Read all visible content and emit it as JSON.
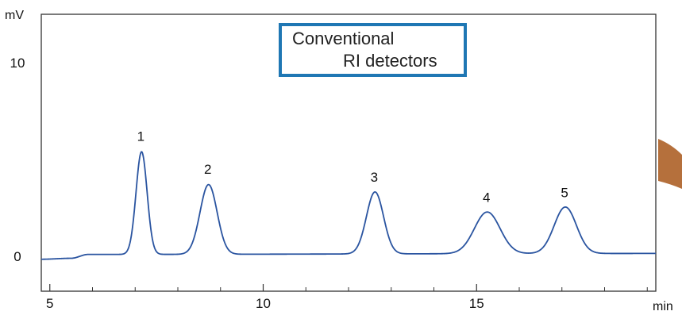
{
  "chart_data": {
    "type": "line",
    "title": "",
    "ylabel": "mV",
    "xlabel": "min",
    "xlim": [
      4.8,
      19.2
    ],
    "ylim": [
      -1.8,
      12.5
    ],
    "x_ticks": [
      5,
      10,
      15
    ],
    "x_minor_ticks": [
      6,
      7,
      8,
      9,
      11,
      12,
      13,
      14,
      16,
      17,
      18,
      19
    ],
    "y_ticks": [
      0,
      10
    ],
    "legend": {
      "lines": [
        "Conventional",
        "RI detectors"
      ],
      "placement": "top-center",
      "border_color": "#1f77b4"
    },
    "line_color": "#2a54a0",
    "baseline_points": [
      [
        4.8,
        -0.15
      ],
      [
        5.5,
        -0.1
      ],
      [
        5.9,
        0.1
      ],
      [
        19.2,
        0.15
      ]
    ],
    "peaks": [
      {
        "label": "1",
        "x": 7.15,
        "height": 5.3,
        "width": 0.13
      },
      {
        "label": "2",
        "x": 8.72,
        "height": 3.6,
        "width": 0.2
      },
      {
        "label": "3",
        "x": 12.62,
        "height": 3.2,
        "width": 0.2
      },
      {
        "label": "4",
        "x": 15.25,
        "height": 2.15,
        "width": 0.3
      },
      {
        "label": "5",
        "x": 17.08,
        "height": 2.4,
        "width": 0.26
      }
    ],
    "annotation_color": "#b5703c"
  }
}
